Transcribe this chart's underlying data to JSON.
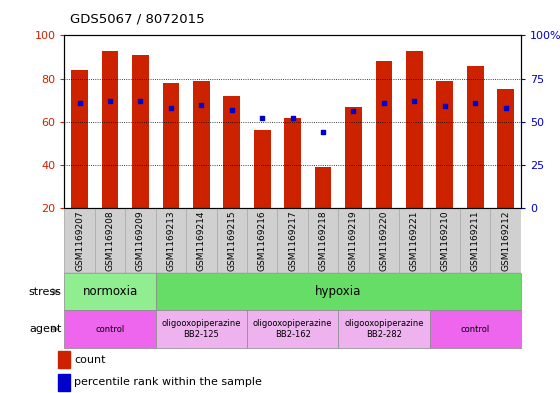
{
  "title": "GDS5067 / 8072015",
  "samples": [
    "GSM1169207",
    "GSM1169208",
    "GSM1169209",
    "GSM1169213",
    "GSM1169214",
    "GSM1169215",
    "GSM1169216",
    "GSM1169217",
    "GSM1169218",
    "GSM1169219",
    "GSM1169220",
    "GSM1169221",
    "GSM1169210",
    "GSM1169211",
    "GSM1169212"
  ],
  "counts": [
    84,
    93,
    91,
    78,
    79,
    72,
    56,
    62,
    39,
    67,
    88,
    93,
    79,
    86,
    75
  ],
  "percentile_ranks": [
    61,
    62,
    62,
    58,
    60,
    57,
    52,
    52,
    44,
    56,
    61,
    62,
    59,
    61,
    58
  ],
  "y_min": 20,
  "y_max": 100,
  "bar_color": "#CC2200",
  "dot_color": "#0000CC",
  "stress_groups": [
    {
      "label": "normoxia",
      "start": 0,
      "end": 3,
      "color": "#90EE90"
    },
    {
      "label": "hypoxia",
      "start": 3,
      "end": 15,
      "color": "#66DD66"
    }
  ],
  "agent_groups": [
    {
      "label": "control",
      "start": 0,
      "end": 3,
      "color": "#EE66EE"
    },
    {
      "label": "oligooxopiperazine\nBB2-125",
      "start": 3,
      "end": 6,
      "color": "#EEB3EE"
    },
    {
      "label": "oligooxopiperazine\nBB2-162",
      "start": 6,
      "end": 9,
      "color": "#EEB3EE"
    },
    {
      "label": "oligooxopiperazine\nBB2-282",
      "start": 9,
      "end": 12,
      "color": "#EEB3EE"
    },
    {
      "label": "control",
      "start": 12,
      "end": 15,
      "color": "#EE66EE"
    }
  ],
  "left_yticks": [
    20,
    40,
    60,
    80,
    100
  ],
  "right_yticks_pct": [
    0,
    25,
    50,
    75,
    100
  ],
  "right_yticklabels": [
    "0",
    "25",
    "50",
    "75",
    "100%"
  ]
}
